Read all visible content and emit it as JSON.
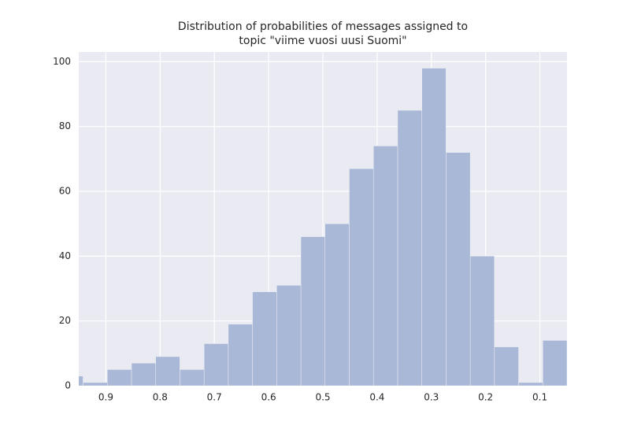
{
  "chart_data": {
    "type": "histogram",
    "title": [
      "Distribution of probabilities of messages assigned to",
      "topic \"viime vuosi uusi Suomi\""
    ],
    "bins": [
      0.05,
      0.0946,
      0.1392,
      0.1838,
      0.2284,
      0.273,
      0.3176,
      0.3622,
      0.4068,
      0.4514,
      0.496,
      0.5406,
      0.5852,
      0.6298,
      0.6744,
      0.719,
      0.7636,
      0.8082,
      0.8528,
      0.8974,
      0.942,
      0.9866
    ],
    "values": [
      14,
      1,
      12,
      40,
      72,
      98,
      85,
      74,
      67,
      50,
      46,
      31,
      29,
      19,
      13,
      5,
      9,
      7,
      5,
      1,
      3
    ],
    "color": "#a9b8d6",
    "xlim": [
      0.95,
      0.05
    ],
    "xticks": [
      0.9,
      0.8,
      0.7,
      0.6,
      0.5,
      0.4,
      0.3,
      0.2,
      0.1
    ],
    "ylim": [
      0,
      103
    ],
    "yticks": [
      0,
      20,
      40,
      60,
      80,
      100
    ],
    "grid": true
  }
}
